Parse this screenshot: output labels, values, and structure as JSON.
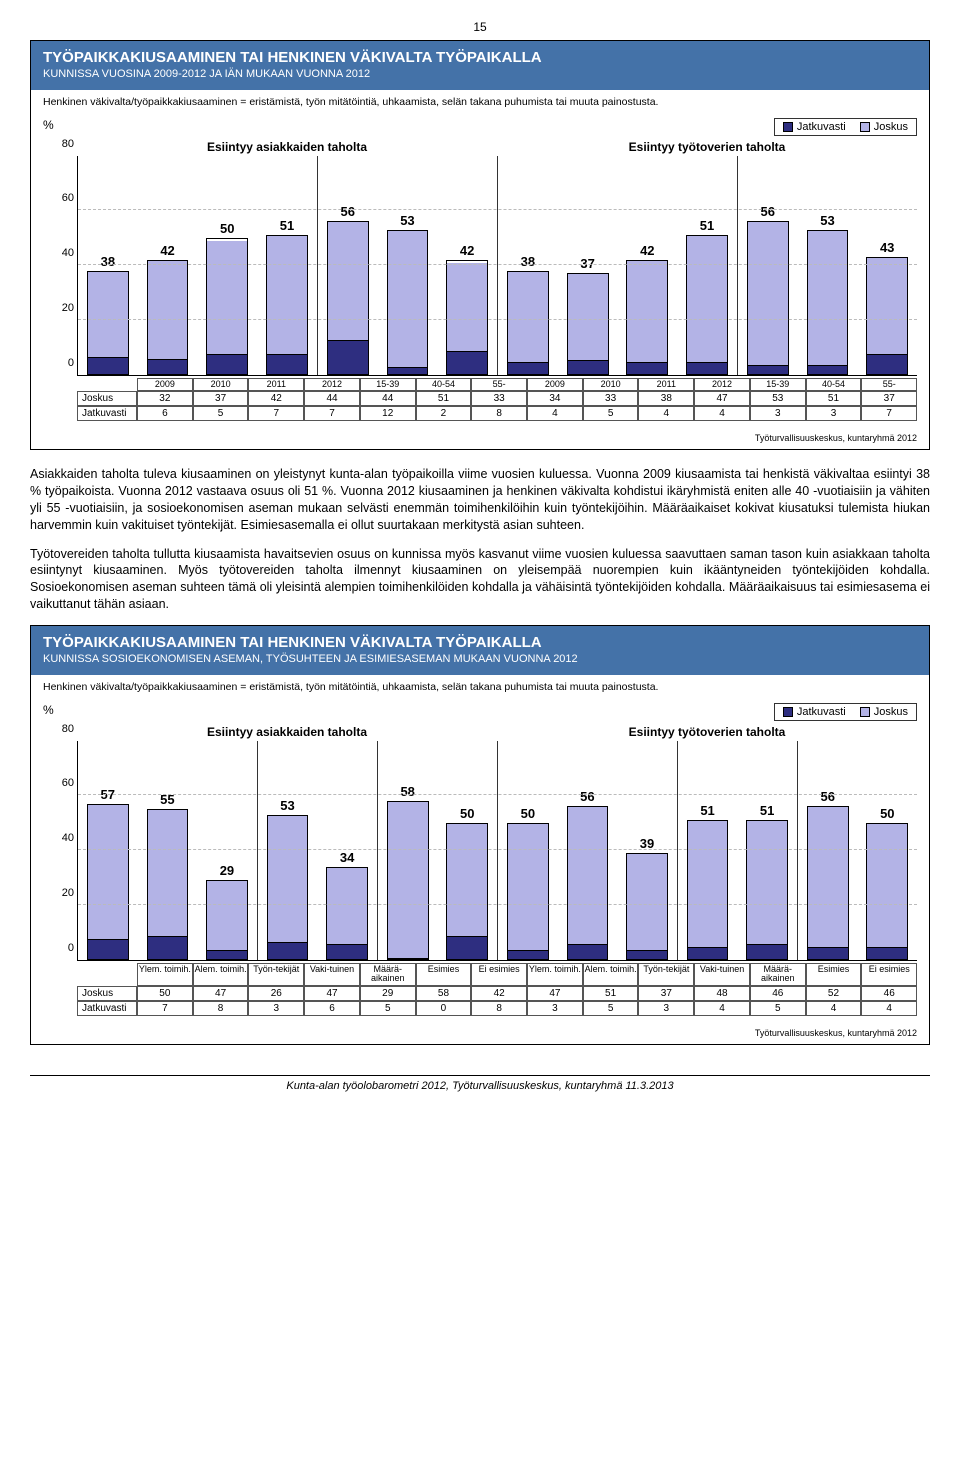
{
  "pageNumber": "15",
  "colors": {
    "headerBg": "#4472a8",
    "joskus": "#b3b3e6",
    "jatkuvasti": "#2e2e80",
    "barBorder": "#000000",
    "grid": "#bbbbbb"
  },
  "legend": {
    "jatkuvasti": "Jatkuvasti",
    "joskus": "Joskus"
  },
  "chart1": {
    "title": "TYÖPAIKKAKIUSAAMINEN TAI HENKINEN VÄKIVALTA TYÖPAIKALLA",
    "subtitle": "KUNNISSA VUOSINA 2009-2012 JA IÄN MUKAAN VUONNA 2012",
    "note": "Henkinen väkivalta/työpaikkakiusaaminen = eristämistä, työn mitätöintiä, uhkaamista, selän takana puhumista tai muuta painostusta.",
    "yLabel": "%",
    "yMax": 80,
    "yTicks": [
      0,
      20,
      40,
      60,
      80
    ],
    "sectionA": "Esiintyy asiakkaiden taholta",
    "sectionB": "Esiintyy työtoverien taholta",
    "categories": [
      "2009",
      "2010",
      "2011",
      "2012",
      "15-39",
      "40-54",
      "55-",
      "2009",
      "2010",
      "2011",
      "2012",
      "15-39",
      "40-54",
      "55-"
    ],
    "totals": [
      38,
      42,
      50,
      51,
      56,
      53,
      42,
      38,
      37,
      42,
      51,
      56,
      53,
      43
    ],
    "joskus": [
      32,
      37,
      42,
      44,
      44,
      51,
      33,
      34,
      33,
      38,
      47,
      53,
      51,
      37
    ],
    "jatkuvasti": [
      6,
      5,
      7,
      7,
      12,
      2,
      8,
      4,
      5,
      4,
      4,
      3,
      3,
      7
    ],
    "rowLabels": {
      "joskus": "Joskus",
      "jatkuvasti": "Jatkuvasti"
    },
    "sepIndices": [
      4,
      7,
      11
    ],
    "footer": "Työturvallisuuskeskus, kuntaryhmä 2012"
  },
  "para1": "Asiakkaiden taholta tuleva kiusaaminen on yleistynyt kunta-alan työpaikoilla viime vuosien kuluessa. Vuonna 2009 kiusaamista tai henkistä väkivaltaa esiintyi 38 % työpaikoista. Vuonna 2012 vastaava osuus oli 51 %. Vuonna 2012 kiusaaminen ja henkinen väkivalta kohdistui ikäryhmistä eniten alle 40 -vuotiaisiin ja vähiten yli 55 -vuotiaisiin, ja sosioekonomisen aseman mukaan selvästi enemmän toimihenkilöihin kuin työntekijöihin. Määräaikaiset kokivat kiusatuksi tulemista hiukan harvemmin kuin vakituiset työntekijät. Esimiesasemalla ei ollut suurtakaan merkitystä asian suhteen.",
  "para2": "Työtovereiden taholta tullutta kiusaamista havaitsevien osuus on kunnissa myös kasvanut viime vuosien kuluessa saavuttaen saman tason kuin asiakkaan taholta esiintynyt kiusaaminen. Myös työtovereiden taholta ilmennyt kiusaaminen on yleisempää nuorempien kuin ikääntyneiden työntekijöiden kohdalla. Sosioekonomisen aseman suhteen tämä oli yleisintä alempien toimihenkilöiden kohdalla ja vähäisintä työntekijöiden kohdalla. Määräaikaisuus tai esimiesasema ei vaikuttanut tähän asiaan.",
  "chart2": {
    "title": "TYÖPAIKKAKIUSAAMINEN TAI HENKINEN VÄKIVALTA TYÖPAIKALLA",
    "subtitle": "KUNNISSA SOSIOEKONOMISEN ASEMAN, TYÖSUHTEEN JA ESIMIESASEMAN MUKAAN VUONNA 2012",
    "note": "Henkinen väkivalta/työpaikkakiusaaminen = eristämistä, työn mitätöintiä, uhkaamista, selän takana puhumista tai muuta painostusta.",
    "yLabel": "%",
    "yMax": 80,
    "yTicks": [
      0,
      20,
      40,
      60,
      80
    ],
    "sectionA": "Esiintyy asiakkaiden taholta",
    "sectionB": "Esiintyy työtoverien taholta",
    "categories": [
      "Ylem. toimih.",
      "Alem. toimih.",
      "Työn-tekijät",
      "Vaki-tuinen",
      "Määrä-aikainen",
      "Esimies",
      "Ei esimies",
      "Ylem. toimih.",
      "Alem. toimih.",
      "Työn-tekijät",
      "Vaki-tuinen",
      "Määrä-aikainen",
      "Esimies",
      "Ei esimies"
    ],
    "totals": [
      57,
      55,
      29,
      53,
      34,
      58,
      50,
      50,
      56,
      39,
      51,
      51,
      56,
      50
    ],
    "joskus": [
      50,
      47,
      26,
      47,
      29,
      58,
      42,
      47,
      51,
      37,
      48,
      46,
      52,
      46
    ],
    "jatkuvasti": [
      7,
      8,
      3,
      6,
      5,
      0,
      8,
      3,
      5,
      3,
      4,
      5,
      4,
      4
    ],
    "rowLabels": {
      "joskus": "Joskus",
      "jatkuvasti": "Jatkuvasti"
    },
    "sepIndices": [
      3,
      5,
      7,
      10,
      12
    ],
    "footer": "Työturvallisuuskeskus, kuntaryhmä 2012"
  },
  "pageFooter": "Kunta-alan työolobarometri 2012, Työturvallisuuskeskus, kuntaryhmä 11.3.2013"
}
